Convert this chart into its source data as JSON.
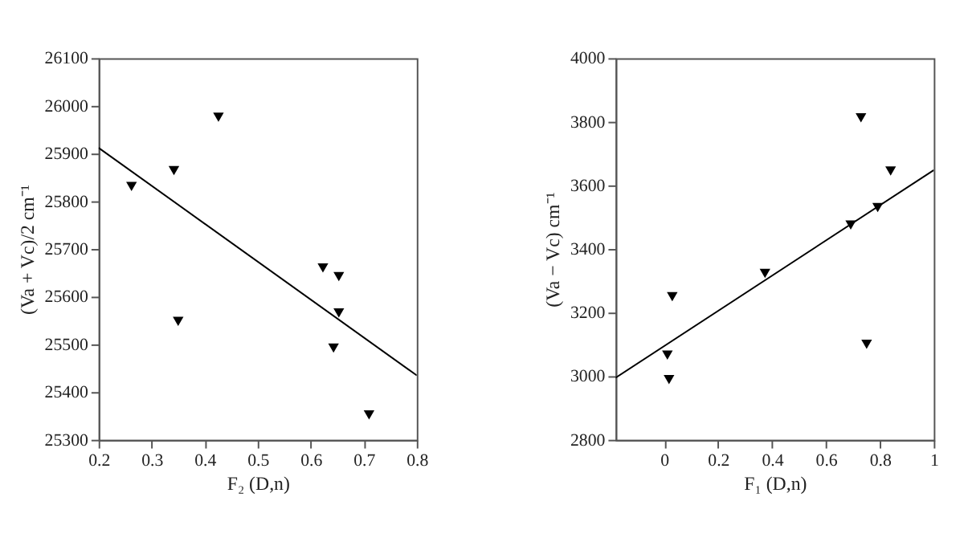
{
  "chart_data": [
    {
      "type": "scatter",
      "xlabel": "F₂ (D,n)",
      "ylabel": "(Va + Vc)/2 cm⁻¹",
      "xlim": [
        0.2,
        0.8
      ],
      "xticks": [
        0.2,
        0.3,
        0.4,
        0.5,
        0.6,
        0.7,
        0.8
      ],
      "ylim": [
        25300,
        26100
      ],
      "yticks": [
        25300,
        25400,
        25500,
        25600,
        25700,
        25800,
        25900,
        26000,
        26100
      ],
      "grid": false,
      "series": [
        {
          "type": "scatter",
          "marker": "triangle",
          "color": "#000000",
          "x": [
            0.262,
            0.342,
            0.426,
            0.35,
            0.623,
            0.653,
            0.653,
            0.643,
            0.71
          ],
          "values": [
            25831,
            25864,
            25976,
            25548,
            25660,
            25642,
            25566,
            25492,
            25352
          ]
        },
        {
          "type": "line",
          "color": "#000000",
          "x": [
            0.2,
            0.8
          ],
          "values": [
            25912,
            25435
          ]
        }
      ]
    },
    {
      "type": "scatter",
      "xlabel": "F₁ (D,n)",
      "ylabel": "(Va − Vc) cm⁻¹",
      "xlim": [
        -0.18,
        1
      ],
      "xticks": [
        0,
        0.2,
        0.4,
        0.6,
        0.8,
        1
      ],
      "ylim": [
        2800,
        4000
      ],
      "yticks": [
        2800,
        3000,
        3200,
        3400,
        3600,
        3800,
        4000
      ],
      "grid": false,
      "series": [
        {
          "type": "scatter",
          "marker": "triangle",
          "color": "#000000",
          "x": [
            0.012,
            0.018,
            0.03,
            0.374,
            0.692,
            0.73,
            0.751,
            0.792,
            0.84
          ],
          "values": [
            3066,
            2989,
            3250,
            3323,
            3475,
            3812,
            3100,
            3530,
            3645
          ]
        },
        {
          "type": "line",
          "color": "#000000",
          "x": [
            -0.18,
            1
          ],
          "values": [
            2995,
            3648
          ]
        }
      ]
    }
  ]
}
